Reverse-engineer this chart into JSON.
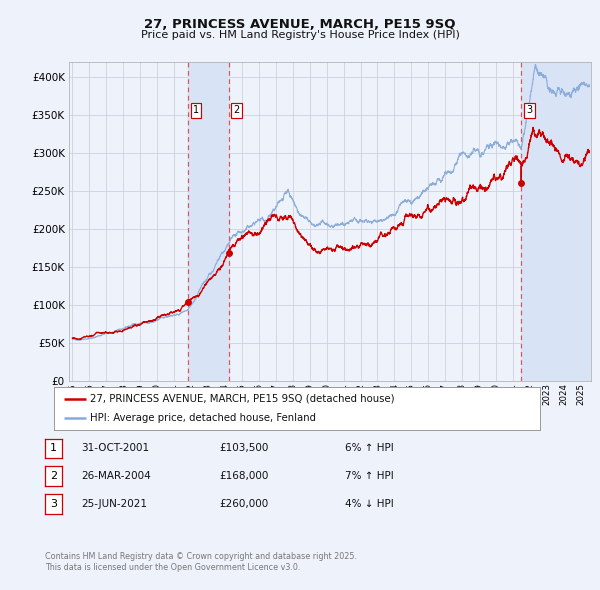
{
  "title_line1": "27, PRINCESS AVENUE, MARCH, PE15 9SQ",
  "title_line2": "Price paid vs. HM Land Registry's House Price Index (HPI)",
  "ylabel_values": [
    "£0",
    "£50K",
    "£100K",
    "£150K",
    "£200K",
    "£250K",
    "£300K",
    "£350K",
    "£400K"
  ],
  "yticks": [
    0,
    50000,
    100000,
    150000,
    200000,
    250000,
    300000,
    350000,
    400000
  ],
  "ylim": [
    0,
    420000
  ],
  "xlim_start": 1994.8,
  "xlim_end": 2025.6,
  "bg_color": "#eef2fb",
  "grid_color": "#c8ccd8",
  "red_line_color": "#cc0000",
  "blue_line_color": "#88aad8",
  "shade_color": "#d8e4f5",
  "vline_color": "#dd4444",
  "sale1_x": 2001.833,
  "sale1_y": 103500,
  "sale2_x": 2004.233,
  "sale2_y": 168000,
  "sale3_x": 2021.483,
  "sale3_y": 260000,
  "box_color": "#cc0000",
  "legend_line1": "27, PRINCESS AVENUE, MARCH, PE15 9SQ (detached house)",
  "legend_line2": "HPI: Average price, detached house, Fenland",
  "table_entries": [
    {
      "num": "1",
      "date": "31-OCT-2001",
      "price": "£103,500",
      "hpi": "6% ↑ HPI"
    },
    {
      "num": "2",
      "date": "26-MAR-2004",
      "price": "£168,000",
      "hpi": "7% ↑ HPI"
    },
    {
      "num": "3",
      "date": "25-JUN-2021",
      "price": "£260,000",
      "hpi": "4% ↓ HPI"
    }
  ],
  "footer_line1": "Contains HM Land Registry data © Crown copyright and database right 2025.",
  "footer_line2": "This data is licensed under the Open Government Licence v3.0."
}
